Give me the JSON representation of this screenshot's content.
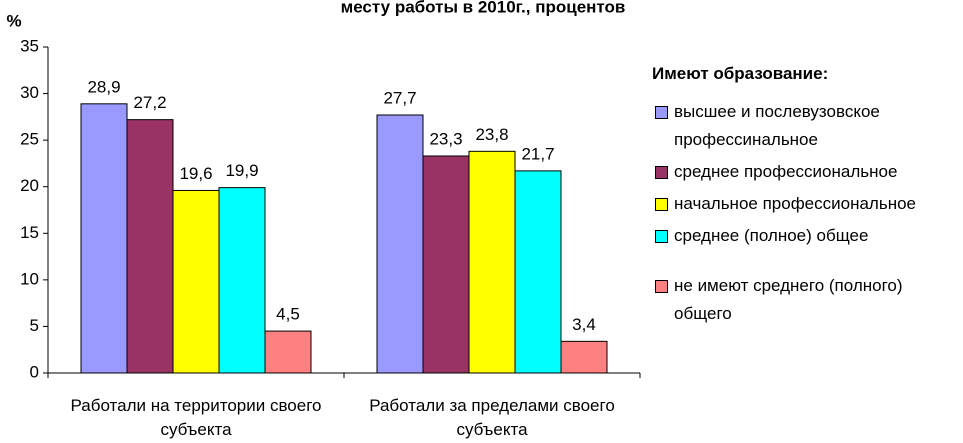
{
  "chart_data": {
    "type": "bar",
    "title": "месту работы в 2010г., процентов",
    "y_label": "%",
    "legend_title": "Имеют образование:",
    "categories": [
      "Работали на территории своего субъекта",
      "Работали за пределами своего субъекта"
    ],
    "series": [
      {
        "name": "высшее и послевузовское профессинальное",
        "color": "#9999ff",
        "values": [
          28.9,
          27.7
        ],
        "value_labels": [
          "28,9",
          "27,7"
        ]
      },
      {
        "name": "среднее профессиональное",
        "color": "#993366",
        "values": [
          27.2,
          23.3
        ],
        "value_labels": [
          "27,2",
          "23,3"
        ]
      },
      {
        "name": "начальное профессиональное",
        "color": "#ffff00",
        "values": [
          19.6,
          23.8
        ],
        "value_labels": [
          "19,6",
          "23,8"
        ]
      },
      {
        "name": "среднее (полное) общее",
        "color": "#00ffff",
        "values": [
          19.9,
          21.7
        ],
        "value_labels": [
          "19,9",
          "21,7"
        ]
      },
      {
        "name": "не имеют среднего (полного) общего",
        "color": "#ff8080",
        "values": [
          4.5,
          3.4
        ],
        "value_labels": [
          "4,5",
          "3,4"
        ]
      }
    ],
    "ylim": [
      0,
      35
    ],
    "yticks": [
      0,
      5,
      10,
      15,
      20,
      25,
      30,
      35
    ],
    "legend": "right"
  }
}
